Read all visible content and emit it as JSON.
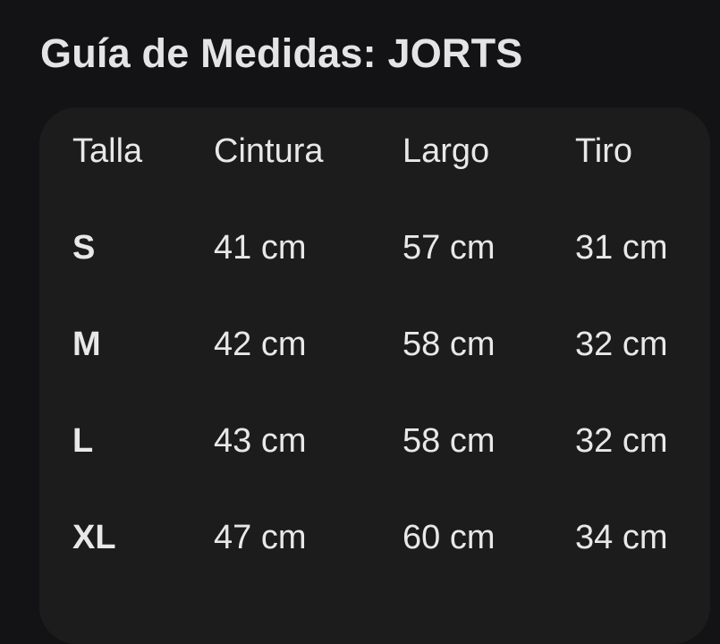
{
  "title": "Guía de Medidas: JORTS",
  "table": {
    "headers": [
      "Talla",
      "Cintura",
      "Largo",
      "Tiro"
    ],
    "rows": [
      [
        "S",
        "41 cm",
        "57 cm",
        "31 cm"
      ],
      [
        "M",
        "42 cm",
        "58 cm",
        "32 cm"
      ],
      [
        "L",
        "43 cm",
        "58 cm",
        "32 cm"
      ],
      [
        "XL",
        "47 cm",
        "60 cm",
        "34 cm"
      ]
    ]
  },
  "colors": {
    "background": "#131315",
    "card": "#1c1c1c",
    "text": "#e8e8e8"
  }
}
